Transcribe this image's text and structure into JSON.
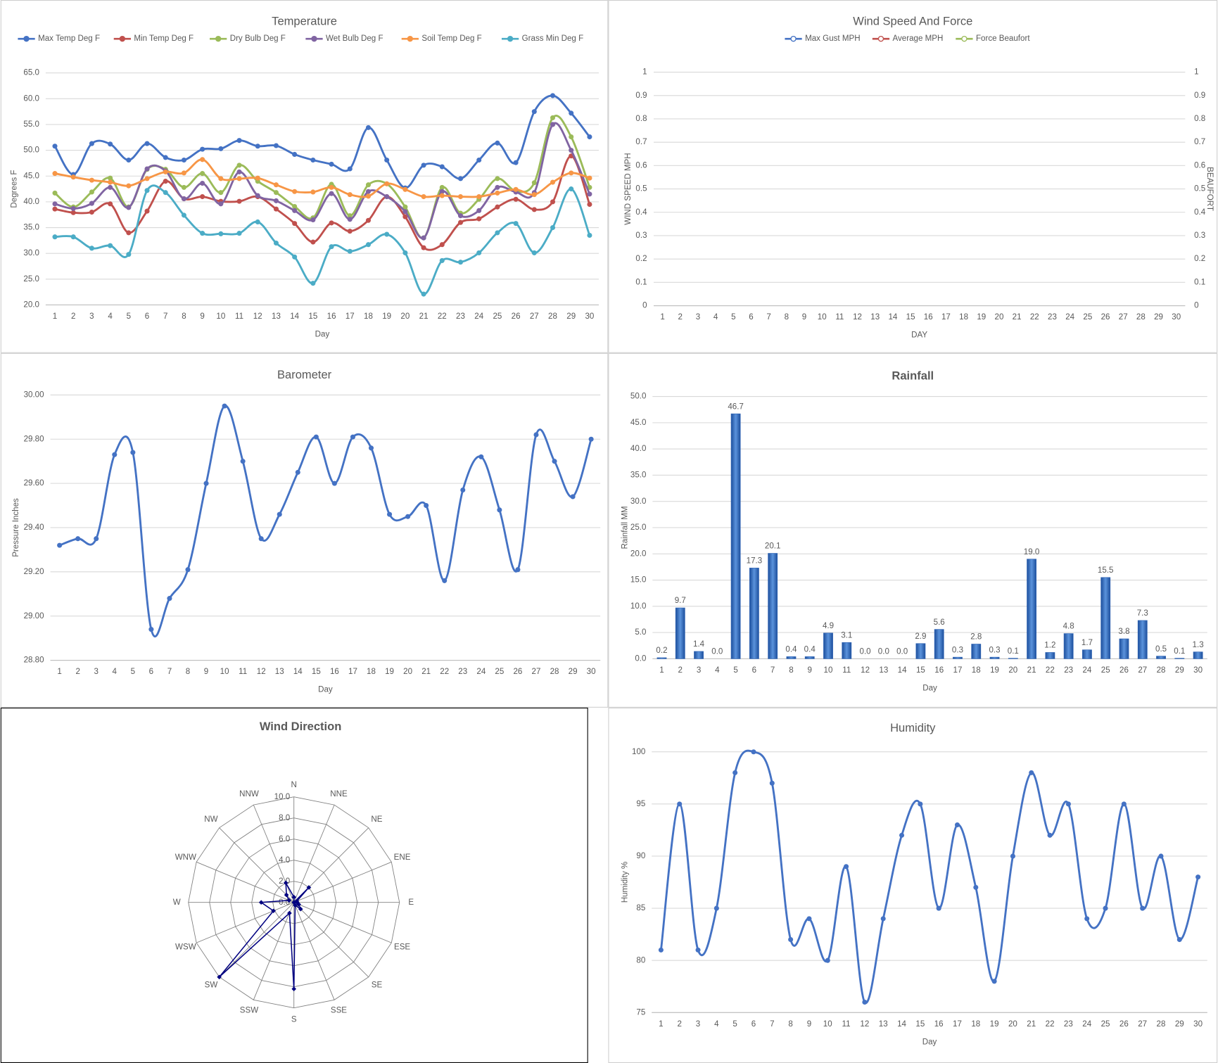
{
  "chart_data": [
    {
      "type": "line",
      "title": "Temperature",
      "ylabel": "Degrees F",
      "xlabel": "Day",
      "categories": [
        1,
        2,
        3,
        4,
        5,
        6,
        7,
        8,
        9,
        10,
        11,
        12,
        13,
        14,
        15,
        16,
        17,
        18,
        19,
        20,
        21,
        22,
        23,
        24,
        25,
        26,
        27,
        28,
        29,
        30
      ],
      "ylim": [
        20,
        65
      ],
      "yticks": [
        {
          "value": 20,
          "label": "20.0"
        },
        {
          "value": 25,
          "label": "25.0"
        },
        {
          "value": 30,
          "label": "30.0"
        },
        {
          "value": 35,
          "label": "35.0"
        },
        {
          "value": 40,
          "label": "40.0"
        },
        {
          "value": 45,
          "label": "45.0"
        },
        {
          "value": 50,
          "label": "50.0"
        },
        {
          "value": 55,
          "label": "55.0"
        },
        {
          "value": 60,
          "label": "60.0"
        },
        {
          "value": 65,
          "label": "65.0"
        }
      ],
      "grid": true,
      "legend": "top",
      "series": [
        {
          "name": "Max Temp Deg F",
          "color": "#4472c4",
          "values": [
            50.8,
            45.3,
            51.3,
            51.2,
            48.1,
            51.3,
            48.6,
            48.1,
            50.2,
            50.3,
            51.9,
            50.8,
            50.9,
            49.2,
            48.1,
            47.3,
            46.4,
            54.4,
            48.1,
            42.7,
            47.1,
            46.8,
            44.5,
            48.1,
            51.4,
            47.6,
            57.5,
            60.6,
            57.2,
            52.6
          ]
        },
        {
          "name": "Min Temp Deg F",
          "color": "#c0504d",
          "values": [
            38.6,
            37.9,
            38.0,
            39.6,
            34.0,
            38.2,
            44.0,
            40.6,
            41.0,
            40.1,
            40.1,
            41.0,
            38.6,
            35.8,
            32.2,
            35.9,
            34.3,
            36.4,
            41.0,
            37.1,
            31.1,
            31.7,
            36.0,
            36.7,
            39.0,
            40.5,
            38.5,
            40.0,
            48.9,
            39.5
          ]
        },
        {
          "name": "Dry Bulb Deg F",
          "color": "#9bbb59",
          "values": [
            41.7,
            39.0,
            41.9,
            44.6,
            39.0,
            46.3,
            46.3,
            42.8,
            45.5,
            41.8,
            47.1,
            44.0,
            41.8,
            39.1,
            36.9,
            43.4,
            37.3,
            43.3,
            43.5,
            39.0,
            33.0,
            42.8,
            37.8,
            40.5,
            44.5,
            42.1,
            43.7,
            56.3,
            52.6,
            42.8
          ]
        },
        {
          "name": "Wet Bulb Deg F",
          "color": "#8064a2",
          "values": [
            39.6,
            38.7,
            39.7,
            42.8,
            38.9,
            46.4,
            46.0,
            40.6,
            43.6,
            39.6,
            45.8,
            41.2,
            40.2,
            38.3,
            36.5,
            41.6,
            36.6,
            42.0,
            41.0,
            38.1,
            33.0,
            42.0,
            37.3,
            38.3,
            42.8,
            41.9,
            41.8,
            55.0,
            50.0,
            41.5
          ]
        },
        {
          "name": "Soil Temp Deg F",
          "color": "#f79646",
          "values": [
            45.5,
            44.8,
            44.2,
            43.8,
            43.1,
            44.5,
            45.8,
            45.6,
            48.2,
            44.5,
            44.5,
            44.6,
            43.3,
            42.0,
            41.9,
            42.8,
            41.4,
            41.1,
            43.5,
            42.4,
            41.0,
            41.2,
            41.0,
            41.0,
            41.7,
            42.4,
            41.4,
            43.8,
            45.6,
            44.6
          ]
        },
        {
          "name": "Grass Min Deg F",
          "color": "#4bacc6",
          "values": [
            33.2,
            33.2,
            31.0,
            31.5,
            29.8,
            42.2,
            41.8,
            37.4,
            33.9,
            33.8,
            33.9,
            36.1,
            32.0,
            29.3,
            24.2,
            31.3,
            30.4,
            31.7,
            33.7,
            30.1,
            22.1,
            28.6,
            28.3,
            30.1,
            34.0,
            35.8,
            30.1,
            35.0,
            42.5,
            33.5
          ]
        }
      ]
    },
    {
      "type": "line",
      "title": "Wind Speed And Force",
      "ylabel": "WIND SPEED MPH",
      "y2label": "BEAUFORT",
      "xlabel": "DAY",
      "categories": [
        1,
        2,
        3,
        4,
        5,
        6,
        7,
        8,
        9,
        10,
        11,
        12,
        13,
        14,
        15,
        16,
        17,
        18,
        19,
        20,
        21,
        22,
        23,
        24,
        25,
        26,
        27,
        28,
        29,
        30
      ],
      "ylim": [
        0,
        1
      ],
      "yticks": [
        0,
        0.1,
        0.2,
        0.3,
        0.4,
        0.5,
        0.6,
        0.7,
        0.8,
        0.9,
        1
      ],
      "y2lim": [
        0,
        1
      ],
      "y2ticks": [
        0,
        0.1,
        0.2,
        0.3,
        0.4,
        0.5,
        0.6,
        0.7,
        0.8,
        0.9,
        1
      ],
      "grid": true,
      "legend": "top",
      "series": [
        {
          "name": "Max Gust MPH",
          "color": "#4472c4",
          "values": [
            null,
            null,
            null,
            null,
            null,
            null,
            null,
            null,
            null,
            null,
            null,
            null,
            null,
            null,
            null,
            null,
            null,
            null,
            null,
            null,
            null,
            null,
            null,
            null,
            null,
            null,
            null,
            null,
            null,
            null
          ]
        },
        {
          "name": "Average MPH",
          "color": "#c0504d",
          "values": [
            null,
            null,
            null,
            null,
            null,
            null,
            null,
            null,
            null,
            null,
            null,
            null,
            null,
            null,
            null,
            null,
            null,
            null,
            null,
            null,
            null,
            null,
            null,
            null,
            null,
            null,
            null,
            null,
            null,
            null
          ]
        },
        {
          "name": "Force Beaufort",
          "color": "#9bbb59",
          "axis": "y2",
          "values": [
            null,
            null,
            null,
            null,
            null,
            null,
            null,
            null,
            null,
            null,
            null,
            null,
            null,
            null,
            null,
            null,
            null,
            null,
            null,
            null,
            null,
            null,
            null,
            null,
            null,
            null,
            null,
            null,
            null,
            null
          ]
        }
      ]
    },
    {
      "type": "line",
      "title": "Barometer",
      "ylabel": "Pressure Inches",
      "xlabel": "Day",
      "categories": [
        1,
        2,
        3,
        4,
        5,
        6,
        7,
        8,
        9,
        10,
        11,
        12,
        13,
        14,
        15,
        16,
        17,
        18,
        19,
        20,
        21,
        22,
        23,
        24,
        25,
        26,
        27,
        28,
        29,
        30
      ],
      "ylim": [
        28.8,
        30
      ],
      "yticks": [
        {
          "value": 28.8,
          "label": "28.80"
        },
        {
          "value": 29,
          "label": "29.00"
        },
        {
          "value": 29.2,
          "label": "29.20"
        },
        {
          "value": 29.4,
          "label": "29.40"
        },
        {
          "value": 29.6,
          "label": "29.60"
        },
        {
          "value": 29.8,
          "label": "29.80"
        },
        {
          "value": 30,
          "label": "30.00"
        }
      ],
      "grid": true,
      "color": "#4472c4",
      "values": [
        29.32,
        29.35,
        29.35,
        29.73,
        29.74,
        28.94,
        29.08,
        29.21,
        29.6,
        29.95,
        29.7,
        29.35,
        29.46,
        29.65,
        29.81,
        29.6,
        29.81,
        29.76,
        29.46,
        29.45,
        29.5,
        29.16,
        29.57,
        29.72,
        29.48,
        29.21,
        29.82,
        29.7,
        29.54,
        29.8
      ]
    },
    {
      "type": "bar",
      "title": "Rainfall",
      "ylabel": "Rainfall MM",
      "xlabel": "Day",
      "categories": [
        1,
        2,
        3,
        4,
        5,
        6,
        7,
        8,
        9,
        10,
        11,
        12,
        13,
        14,
        15,
        16,
        17,
        18,
        19,
        20,
        21,
        22,
        23,
        24,
        25,
        26,
        27,
        28,
        29,
        30
      ],
      "ylim": [
        0,
        50
      ],
      "yticks": [
        {
          "value": 0,
          "label": "0.0"
        },
        {
          "value": 5,
          "label": "5.0"
        },
        {
          "value": 10,
          "label": "10.0"
        },
        {
          "value": 15,
          "label": "15.0"
        },
        {
          "value": 20,
          "label": "20.0"
        },
        {
          "value": 25,
          "label": "25.0"
        },
        {
          "value": 30,
          "label": "30.0"
        },
        {
          "value": 35,
          "label": "35.0"
        },
        {
          "value": 40,
          "label": "40.0"
        },
        {
          "value": 45,
          "label": "45.0"
        },
        {
          "value": 50,
          "label": "50.0"
        }
      ],
      "grid": true,
      "color": "#2f64b5",
      "values": [
        0.2,
        9.7,
        1.4,
        0,
        46.7,
        17.3,
        20.1,
        0.4,
        0.4,
        4.9,
        3.1,
        0,
        0,
        0,
        2.9,
        5.6,
        0.3,
        2.8,
        0.3,
        0.1,
        19,
        1.2,
        4.8,
        1.7,
        15.5,
        3.8,
        7.3,
        0.5,
        0.1,
        1.3
      ],
      "value_labels": [
        "0.2",
        "9.7",
        "1.4",
        "0.0",
        "46.7",
        "17.3",
        "20.1",
        "0.4",
        "0.4",
        "4.9",
        "3.1",
        "0.0",
        "0.0",
        "0.0",
        "2.9",
        "5.6",
        "0.3",
        "2.8",
        "0.3",
        "0.1",
        "19.0",
        "1.2",
        "4.8",
        "1.7",
        "15.5",
        "3.8",
        "7.3",
        "0.5",
        "0.1",
        "1.3"
      ]
    },
    {
      "type": "radar",
      "title": "Wind Direction",
      "categories": [
        "N",
        "NNE",
        "NE",
        "ENE",
        "E",
        "ESE",
        "SE",
        "SSE",
        "S",
        "SSW",
        "SW",
        "WSW",
        "W",
        "WNW",
        "NW",
        "NNW"
      ],
      "ylim": [
        0,
        10
      ],
      "yticks": [
        {
          "value": 0,
          "label": "0.0"
        },
        {
          "value": 2,
          "label": "2.0"
        },
        {
          "value": 4,
          "label": "4.0"
        },
        {
          "value": 6,
          "label": "6.0"
        },
        {
          "value": 8,
          "label": "8.0"
        },
        {
          "value": 10,
          "label": "10.0"
        }
      ],
      "color": "#000080",
      "values": [
        0.5,
        0,
        2.0,
        0.3,
        0.3,
        0.5,
        0.9,
        0.3,
        8.2,
        1.1,
        10.0,
        2.1,
        3.1,
        0.5,
        1.0,
        2.0
      ]
    },
    {
      "type": "line",
      "title": "Humidity",
      "ylabel": "Humidity %",
      "xlabel": "Day",
      "categories": [
        1,
        2,
        3,
        4,
        5,
        6,
        7,
        8,
        9,
        10,
        11,
        12,
        13,
        14,
        15,
        16,
        17,
        18,
        19,
        20,
        21,
        22,
        23,
        24,
        25,
        26,
        27,
        28,
        29,
        30
      ],
      "ylim": [
        75,
        100
      ],
      "yticks": [
        75,
        80,
        85,
        90,
        95,
        100
      ],
      "grid": true,
      "color": "#4472c4",
      "values": [
        81,
        95,
        81,
        85,
        98,
        100,
        97,
        82,
        84,
        80,
        89,
        76,
        84,
        92,
        95,
        85,
        93,
        87,
        78,
        90,
        98,
        92,
        95,
        84,
        85,
        95,
        85,
        90,
        82,
        88
      ]
    }
  ]
}
